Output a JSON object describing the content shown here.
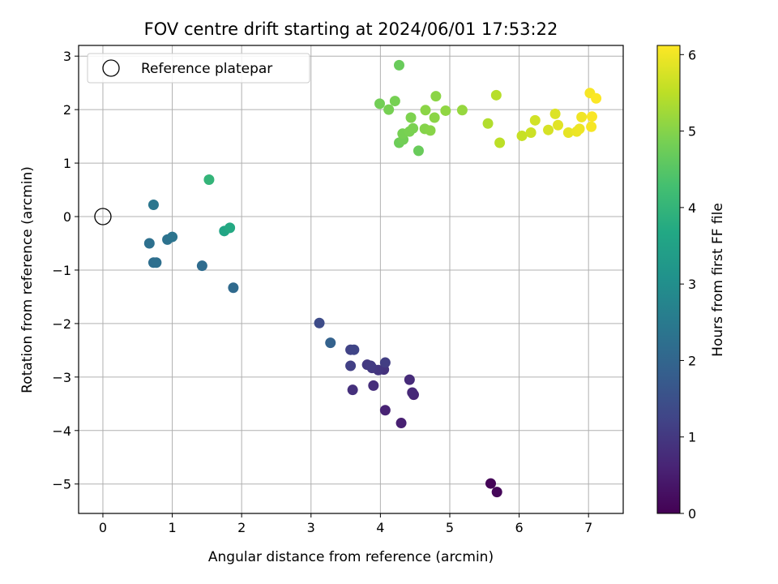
{
  "chart_data": {
    "type": "scatter",
    "title": "FOV centre drift starting at 2024/06/01 17:53:22",
    "xlabel": "Angular distance from reference (arcmin)",
    "ylabel": "Rotation from reference (arcmin)",
    "xlim": [
      -0.35,
      7.5
    ],
    "ylim": [
      -5.55,
      3.2
    ],
    "xticks": [
      0,
      1,
      2,
      3,
      4,
      5,
      6,
      7
    ],
    "xtick_labels": [
      "0",
      "1",
      "2",
      "3",
      "4",
      "5",
      "6",
      "7"
    ],
    "yticks": [
      -5,
      -4,
      -3,
      -2,
      -1,
      0,
      1,
      2,
      3
    ],
    "ytick_labels": [
      "−5",
      "−4",
      "−3",
      "−2",
      "−1",
      "0",
      "1",
      "2",
      "3"
    ],
    "grid": true,
    "colormap": "viridis",
    "colorbar": {
      "label": "Hours from first FF file",
      "range": [
        0,
        6.12
      ],
      "ticks": [
        0,
        1,
        2,
        3,
        4,
        5,
        6
      ],
      "tick_labels": [
        "0",
        "1",
        "2",
        "3",
        "4",
        "5",
        "6"
      ]
    },
    "legend": {
      "entries": [
        "Reference platepar"
      ],
      "location": "upper-left"
    },
    "reference_point": {
      "x": 0,
      "y": 0,
      "label": "Reference platepar"
    },
    "points": [
      {
        "x": 5.59,
        "y": -4.99,
        "h": 0.05
      },
      {
        "x": 5.68,
        "y": -5.15,
        "h": 0.1
      },
      {
        "x": 4.3,
        "y": -3.86,
        "h": 0.55
      },
      {
        "x": 4.07,
        "y": -3.62,
        "h": 0.6
      },
      {
        "x": 4.48,
        "y": -3.33,
        "h": 0.65
      },
      {
        "x": 4.46,
        "y": -3.29,
        "h": 0.7
      },
      {
        "x": 4.42,
        "y": -3.05,
        "h": 0.75
      },
      {
        "x": 3.9,
        "y": -3.16,
        "h": 0.8
      },
      {
        "x": 3.6,
        "y": -3.24,
        "h": 0.85
      },
      {
        "x": 4.05,
        "y": -2.86,
        "h": 0.9
      },
      {
        "x": 3.97,
        "y": -2.87,
        "h": 0.95
      },
      {
        "x": 3.88,
        "y": -2.83,
        "h": 1.0
      },
      {
        "x": 3.81,
        "y": -2.77,
        "h": 1.02
      },
      {
        "x": 3.86,
        "y": -2.79,
        "h": 1.05
      },
      {
        "x": 4.07,
        "y": -2.73,
        "h": 1.1
      },
      {
        "x": 3.57,
        "y": -2.79,
        "h": 1.15
      },
      {
        "x": 3.57,
        "y": -2.49,
        "h": 1.2
      },
      {
        "x": 3.62,
        "y": -2.49,
        "h": 1.25
      },
      {
        "x": 3.12,
        "y": -1.99,
        "h": 1.4
      },
      {
        "x": 3.28,
        "y": -2.36,
        "h": 1.9
      },
      {
        "x": 1.88,
        "y": -1.33,
        "h": 2.1
      },
      {
        "x": 1.43,
        "y": -0.92,
        "h": 2.15
      },
      {
        "x": 0.73,
        "y": -0.86,
        "h": 2.2
      },
      {
        "x": 0.77,
        "y": -0.86,
        "h": 2.22
      },
      {
        "x": 0.67,
        "y": -0.5,
        "h": 2.25
      },
      {
        "x": 0.93,
        "y": -0.43,
        "h": 2.3
      },
      {
        "x": 1.0,
        "y": -0.38,
        "h": 2.35
      },
      {
        "x": 0.73,
        "y": 0.22,
        "h": 2.4
      },
      {
        "x": 1.75,
        "y": -0.27,
        "h": 3.6
      },
      {
        "x": 1.83,
        "y": -0.21,
        "h": 3.7
      },
      {
        "x": 1.53,
        "y": 0.69,
        "h": 4.0
      },
      {
        "x": 4.55,
        "y": 1.23,
        "h": 4.7
      },
      {
        "x": 4.27,
        "y": 1.38,
        "h": 4.75
      },
      {
        "x": 4.33,
        "y": 1.44,
        "h": 4.8
      },
      {
        "x": 4.32,
        "y": 1.55,
        "h": 4.85
      },
      {
        "x": 4.42,
        "y": 1.59,
        "h": 4.88
      },
      {
        "x": 4.47,
        "y": 1.65,
        "h": 4.9
      },
      {
        "x": 4.44,
        "y": 1.85,
        "h": 4.92
      },
      {
        "x": 4.12,
        "y": 2.0,
        "h": 4.85
      },
      {
        "x": 3.99,
        "y": 2.11,
        "h": 4.8
      },
      {
        "x": 4.21,
        "y": 2.16,
        "h": 4.85
      },
      {
        "x": 4.27,
        "y": 2.83,
        "h": 4.7
      },
      {
        "x": 4.64,
        "y": 1.64,
        "h": 5.0
      },
      {
        "x": 4.72,
        "y": 1.61,
        "h": 5.02
      },
      {
        "x": 4.65,
        "y": 1.99,
        "h": 5.05
      },
      {
        "x": 4.78,
        "y": 1.85,
        "h": 5.05
      },
      {
        "x": 4.8,
        "y": 2.25,
        "h": 5.05
      },
      {
        "x": 4.94,
        "y": 1.98,
        "h": 5.1
      },
      {
        "x": 5.18,
        "y": 1.99,
        "h": 5.15
      },
      {
        "x": 5.55,
        "y": 1.74,
        "h": 5.4
      },
      {
        "x": 5.67,
        "y": 2.27,
        "h": 5.45
      },
      {
        "x": 5.72,
        "y": 1.38,
        "h": 5.5
      },
      {
        "x": 6.04,
        "y": 1.51,
        "h": 5.6
      },
      {
        "x": 6.17,
        "y": 1.57,
        "h": 5.65
      },
      {
        "x": 6.23,
        "y": 1.8,
        "h": 5.7
      },
      {
        "x": 6.42,
        "y": 1.62,
        "h": 5.75
      },
      {
        "x": 6.52,
        "y": 1.92,
        "h": 5.8
      },
      {
        "x": 6.56,
        "y": 1.71,
        "h": 5.85
      },
      {
        "x": 6.71,
        "y": 1.57,
        "h": 5.9
      },
      {
        "x": 6.83,
        "y": 1.59,
        "h": 5.95
      },
      {
        "x": 6.87,
        "y": 1.64,
        "h": 5.97
      },
      {
        "x": 6.9,
        "y": 1.86,
        "h": 6.0
      },
      {
        "x": 7.02,
        "y": 2.31,
        "h": 6.05
      },
      {
        "x": 7.04,
        "y": 1.68,
        "h": 6.05
      },
      {
        "x": 7.05,
        "y": 1.87,
        "h": 6.08
      },
      {
        "x": 7.11,
        "y": 2.21,
        "h": 6.1
      }
    ]
  }
}
